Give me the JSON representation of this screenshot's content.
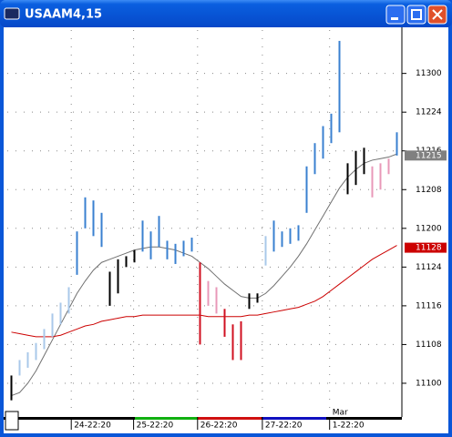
{
  "chart_data": {
    "type": "ohlc",
    "title": "USAAM4,15",
    "lows": [
      110.89,
      111.05,
      111.1,
      111.15,
      111.22,
      111.3,
      111.38,
      111.45,
      111.7,
      112.0,
      111.95,
      111.88,
      111.5,
      111.58,
      111.75,
      111.78,
      111.85,
      111.8,
      111.88,
      111.8,
      111.77,
      111.82,
      111.85,
      111.25,
      111.5,
      111.45,
      111.3,
      111.15,
      111.15,
      111.48,
      111.52,
      111.76,
      111.85,
      111.88,
      111.9,
      111.92,
      112.1,
      112.35,
      112.45,
      112.55,
      112.62,
      112.22,
      112.28,
      112.35,
      112.2,
      112.25,
      112.35,
      112.47
    ],
    "highs": [
      111.05,
      111.15,
      111.2,
      111.26,
      111.35,
      111.45,
      111.52,
      111.62,
      111.98,
      112.2,
      112.18,
      112.1,
      111.72,
      111.8,
      111.82,
      111.86,
      112.05,
      111.98,
      112.08,
      111.92,
      111.9,
      111.92,
      111.94,
      111.78,
      111.66,
      111.62,
      111.48,
      111.38,
      111.4,
      111.58,
      111.58,
      111.95,
      112.05,
      111.98,
      112.0,
      112.02,
      112.4,
      112.55,
      112.66,
      112.74,
      113.21,
      112.42,
      112.5,
      112.52,
      112.4,
      112.42,
      112.45,
      112.62
    ],
    "bar_colors": [
      "#000000",
      "#a9c8ea",
      "#a9c8ea",
      "#a9c8ea",
      "#a9c8ea",
      "#a9c8ea",
      "#a9c8ea",
      "#a9c8ea",
      "#3a80d0",
      "#3a80d0",
      "#3a80d0",
      "#3a80d0",
      "#000000",
      "#000000",
      "#000000",
      "#000000",
      "#3a80d0",
      "#3a80d0",
      "#3a80d0",
      "#3a80d0",
      "#3a80d0",
      "#3a80d0",
      "#3a80d0",
      "#d01020",
      "#e898b8",
      "#e898b8",
      "#d01020",
      "#d01020",
      "#d01020",
      "#000000",
      "#000000",
      "#a9c8ea",
      "#3a80d0",
      "#3a80d0",
      "#3a80d0",
      "#3a80d0",
      "#3a80d0",
      "#3a80d0",
      "#3a80d0",
      "#3a80d0",
      "#3a80d0",
      "#000000",
      "#000000",
      "#000000",
      "#e898b8",
      "#e898b8",
      "#e898b8",
      "#3a80d0"
    ],
    "series": [
      {
        "color": "#707070",
        "values": [
          110.92,
          110.94,
          111.0,
          111.08,
          111.18,
          111.28,
          111.38,
          111.48,
          111.58,
          111.66,
          111.73,
          111.78,
          111.8,
          111.82,
          111.84,
          111.86,
          111.87,
          111.88,
          111.88,
          111.87,
          111.86,
          111.84,
          111.82,
          111.78,
          111.74,
          111.69,
          111.64,
          111.6,
          111.56,
          111.55,
          111.55,
          111.58,
          111.63,
          111.69,
          111.75,
          111.82,
          111.9,
          111.99,
          112.08,
          112.17,
          112.26,
          112.33,
          112.38,
          112.42,
          112.44,
          112.45,
          112.46,
          112.48
        ]
      },
      {
        "color": "#cc0000",
        "values": [
          111.33,
          111.32,
          111.31,
          111.3,
          111.3,
          111.3,
          111.31,
          111.33,
          111.35,
          111.37,
          111.38,
          111.4,
          111.41,
          111.42,
          111.43,
          111.43,
          111.44,
          111.44,
          111.44,
          111.44,
          111.44,
          111.44,
          111.44,
          111.44,
          111.43,
          111.43,
          111.43,
          111.43,
          111.43,
          111.44,
          111.44,
          111.45,
          111.46,
          111.47,
          111.48,
          111.49,
          111.51,
          111.53,
          111.56,
          111.6,
          111.64,
          111.68,
          111.72,
          111.76,
          111.8,
          111.83,
          111.86,
          111.89
        ]
      }
    ],
    "xlim": [
      -0.5,
      47.5
    ],
    "xticks": [
      {
        "value": 7.3,
        "label": "24-22:20"
      },
      {
        "value": 14.9,
        "label": "25-22:20"
      },
      {
        "value": 22.7,
        "label": "26-22:20"
      },
      {
        "value": 30.6,
        "label": "27-22:20"
      },
      {
        "value": 38.8,
        "label": "1-22:20"
      }
    ],
    "month_label": {
      "value": 38.8,
      "label": "Mar"
    },
    "ylim": [
      110.8,
      113.28
    ],
    "yticks": [
      {
        "value": 113,
        "label": "11300"
      },
      {
        "value": 112.75,
        "label": "11224"
      },
      {
        "value": 112.5,
        "label": "11216"
      },
      {
        "value": 112.25,
        "label": "11208"
      },
      {
        "value": 112,
        "label": "11200"
      },
      {
        "value": 111.75,
        "label": "11124"
      },
      {
        "value": 111.5,
        "label": "11116"
      },
      {
        "value": 111.25,
        "label": "11108"
      },
      {
        "value": 111,
        "label": "11100"
      }
    ],
    "price_tags": [
      {
        "value": 112.47,
        "label": "11215",
        "color": "#808080"
      },
      {
        "value": 111.875,
        "label": "11128",
        "color": "#cc0000"
      }
    ],
    "grid": true
  }
}
